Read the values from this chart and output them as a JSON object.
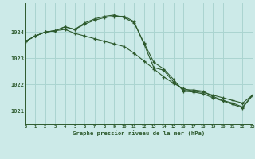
{
  "title": "Graphe pression niveau de la mer (hPa)",
  "background_color": "#cceae8",
  "grid_color": "#aad4d0",
  "line_color": "#2d5a2d",
  "hours": [
    0,
    1,
    2,
    3,
    4,
    5,
    6,
    7,
    8,
    9,
    10,
    11,
    12,
    13,
    14,
    15,
    16,
    17,
    18,
    19,
    20,
    21,
    22,
    23
  ],
  "line1": [
    1023.65,
    1023.85,
    1024.0,
    1024.05,
    1024.1,
    1023.95,
    1023.85,
    1023.75,
    1023.65,
    1023.55,
    1023.45,
    1023.2,
    1022.9,
    1022.6,
    1022.3,
    1022.05,
    1021.85,
    1021.75,
    1021.7,
    1021.6,
    1021.5,
    1021.4,
    1021.3,
    1021.6
  ],
  "line2": [
    1023.65,
    1023.85,
    1024.0,
    1024.05,
    1024.2,
    1024.1,
    1024.3,
    1024.45,
    1024.55,
    1024.6,
    1024.6,
    1024.4,
    1023.55,
    1022.65,
    1022.55,
    1022.1,
    1021.8,
    1021.8,
    1021.75,
    1021.55,
    1021.4,
    1021.3,
    1021.15,
    1021.6
  ],
  "line3": [
    1023.65,
    1023.85,
    1024.0,
    1024.05,
    1024.2,
    1024.1,
    1024.35,
    1024.5,
    1024.6,
    1024.65,
    1024.55,
    1024.35,
    1023.6,
    1022.85,
    1022.6,
    1022.2,
    1021.75,
    1021.72,
    1021.65,
    1021.5,
    1021.38,
    1021.25,
    1021.12,
    1021.58
  ],
  "ylim": [
    1020.5,
    1025.1
  ],
  "yticks": [
    1021,
    1022,
    1023,
    1024
  ],
  "xlim": [
    0,
    23
  ],
  "xticks": [
    0,
    1,
    2,
    3,
    4,
    5,
    6,
    7,
    8,
    9,
    10,
    11,
    12,
    13,
    14,
    15,
    16,
    17,
    18,
    19,
    20,
    21,
    22,
    23
  ]
}
